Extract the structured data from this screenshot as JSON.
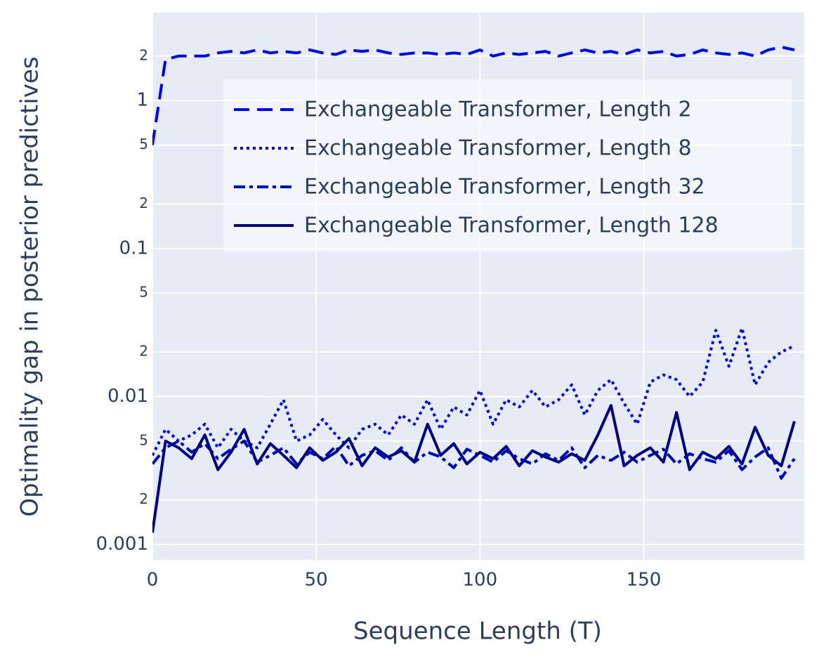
{
  "chart_data": {
    "type": "line",
    "x_label": "Sequence Length (T)",
    "y_label": "Optimality gap in posterior predictives",
    "log_y": true,
    "grid": true,
    "legend_position": "top-right",
    "xlim": [
      0,
      199
    ],
    "xticks": [
      0,
      50,
      100,
      150
    ],
    "ylim": [
      0.000786,
      3.93
    ],
    "yticks": [
      {
        "value": 0.001,
        "label": "0.001"
      },
      {
        "value": 0.002,
        "label": "2"
      },
      {
        "value": 0.005,
        "label": "5"
      },
      {
        "value": 0.01,
        "label": "0.01"
      },
      {
        "value": 0.02,
        "label": "2"
      },
      {
        "value": 0.05,
        "label": "5"
      },
      0.1,
      {
        "value": 0.2,
        "label": "2"
      },
      {
        "value": 0.5,
        "label": "5"
      },
      1,
      2
    ],
    "x": [
      0,
      4,
      8,
      12,
      16,
      20,
      24,
      28,
      32,
      36,
      40,
      44,
      48,
      52,
      56,
      60,
      64,
      68,
      72,
      76,
      80,
      84,
      88,
      92,
      96,
      100,
      104,
      108,
      112,
      116,
      120,
      124,
      128,
      132,
      136,
      140,
      144,
      148,
      152,
      156,
      160,
      164,
      168,
      172,
      176,
      180,
      184,
      188,
      192,
      196
    ],
    "series": [
      {
        "name": "Exchangeable Transformer, Length 2",
        "color": "#0000ff",
        "dash": "dash",
        "values": [
          0.5,
          1.9,
          2.0,
          2.0,
          2.0,
          2.1,
          2.15,
          2.1,
          2.2,
          2.1,
          2.15,
          2.1,
          2.2,
          2.1,
          2.05,
          2.2,
          2.15,
          2.2,
          2.1,
          2.05,
          2.1,
          2.1,
          2.05,
          2.1,
          2.05,
          2.2,
          2.0,
          2.1,
          2.05,
          2.1,
          2.15,
          2.0,
          2.1,
          2.2,
          2.1,
          2.15,
          2.05,
          2.2,
          2.1,
          2.15,
          2.0,
          2.05,
          2.2,
          2.1,
          2.05,
          2.1,
          2.0,
          2.2,
          2.3,
          2.2
        ]
      },
      {
        "name": "Exchangeable Transformer, Length 8",
        "color": "#0000ff",
        "dash": "dot",
        "values": [
          0.004,
          0.006,
          0.005,
          0.0055,
          0.0065,
          0.0045,
          0.006,
          0.005,
          0.0045,
          0.0065,
          0.0095,
          0.005,
          0.0055,
          0.007,
          0.0055,
          0.0045,
          0.006,
          0.0065,
          0.0055,
          0.0075,
          0.0065,
          0.0095,
          0.006,
          0.0085,
          0.0075,
          0.011,
          0.0065,
          0.0095,
          0.0085,
          0.011,
          0.0085,
          0.0095,
          0.012,
          0.0075,
          0.011,
          0.013,
          0.009,
          0.0065,
          0.0125,
          0.014,
          0.013,
          0.01,
          0.0125,
          0.028,
          0.016,
          0.029,
          0.012,
          0.017,
          0.02,
          0.022
        ]
      },
      {
        "name": "Exchangeable Transformer, Length 32",
        "color": "#0000cd",
        "dash": "dashdot",
        "values": [
          0.0035,
          0.0045,
          0.005,
          0.0042,
          0.0048,
          0.0038,
          0.0044,
          0.005,
          0.0036,
          0.004,
          0.0045,
          0.0035,
          0.0042,
          0.0038,
          0.0046,
          0.0034,
          0.004,
          0.0043,
          0.0037,
          0.0045,
          0.0036,
          0.0042,
          0.0039,
          0.0033,
          0.0044,
          0.004,
          0.0036,
          0.0043,
          0.0038,
          0.0035,
          0.0041,
          0.0037,
          0.0045,
          0.0033,
          0.004,
          0.0037,
          0.0042,
          0.0036,
          0.004,
          0.0044,
          0.0035,
          0.0041,
          0.0038,
          0.0036,
          0.0043,
          0.0032,
          0.0039,
          0.0045,
          0.0028,
          0.0038
        ]
      },
      {
        "name": "Exchangeable Transformer, Length 128",
        "color": "#00008b",
        "dash": "solid",
        "values": [
          0.0012,
          0.005,
          0.0045,
          0.0038,
          0.0055,
          0.0032,
          0.0042,
          0.006,
          0.0035,
          0.0048,
          0.004,
          0.0033,
          0.0045,
          0.0037,
          0.0042,
          0.0052,
          0.0034,
          0.0045,
          0.0039,
          0.0043,
          0.0036,
          0.0065,
          0.004,
          0.0048,
          0.0035,
          0.0042,
          0.0038,
          0.0046,
          0.0034,
          0.0043,
          0.0039,
          0.0036,
          0.0041,
          0.0037,
          0.0055,
          0.0087,
          0.0034,
          0.004,
          0.0045,
          0.0036,
          0.0078,
          0.0032,
          0.0042,
          0.0038,
          0.0046,
          0.0035,
          0.0062,
          0.004,
          0.0034,
          0.0068
        ]
      }
    ]
  }
}
